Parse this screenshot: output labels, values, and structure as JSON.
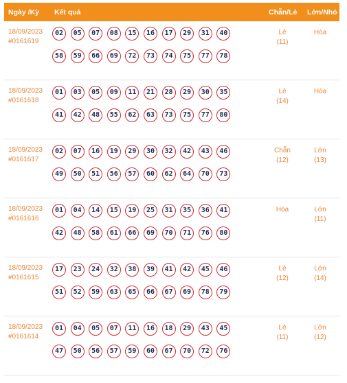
{
  "header": {
    "date": "Ngày /Kỳ",
    "result": "Kết quả",
    "chanle": "Chẵn/Lẻ",
    "lonnho": "Lớn/Nhỏ"
  },
  "draws": [
    {
      "date": "18/09/2023",
      "id": "#0161619",
      "row1": [
        "02",
        "05",
        "07",
        "08",
        "15",
        "16",
        "17",
        "29",
        "31",
        "40"
      ],
      "row2": [
        "58",
        "59",
        "66",
        "69",
        "72",
        "73",
        "74",
        "75",
        "77",
        "78"
      ],
      "chanle": "Lẻ",
      "chanle_count": "(11)",
      "lonnho": "Hòa",
      "lonnho_count": ""
    },
    {
      "date": "18/09/2023",
      "id": "#0161618",
      "row1": [
        "01",
        "03",
        "05",
        "09",
        "11",
        "21",
        "28",
        "29",
        "30",
        "35"
      ],
      "row2": [
        "41",
        "42",
        "48",
        "55",
        "62",
        "63",
        "73",
        "75",
        "77",
        "80"
      ],
      "chanle": "Lẻ",
      "chanle_count": "(14)",
      "lonnho": "Hòa",
      "lonnho_count": ""
    },
    {
      "date": "18/09/2023",
      "id": "#0161617",
      "row1": [
        "02",
        "07",
        "16",
        "19",
        "29",
        "30",
        "32",
        "42",
        "43",
        "46"
      ],
      "row2": [
        "49",
        "50",
        "51",
        "56",
        "57",
        "60",
        "62",
        "64",
        "70",
        "73"
      ],
      "chanle": "Chẵn",
      "chanle_count": "(12)",
      "lonnho": "Lớn",
      "lonnho_count": "(13)"
    },
    {
      "date": "18/09/2023",
      "id": "#0161616",
      "row1": [
        "01",
        "04",
        "14",
        "15",
        "19",
        "25",
        "31",
        "35",
        "36",
        "41"
      ],
      "row2": [
        "42",
        "48",
        "58",
        "61",
        "66",
        "69",
        "70",
        "71",
        "76",
        "80"
      ],
      "chanle": "Hòa",
      "chanle_count": "",
      "lonnho": "Lớn",
      "lonnho_count": "(11)"
    },
    {
      "date": "18/09/2023",
      "id": "#0161615",
      "row1": [
        "17",
        "23",
        "24",
        "32",
        "38",
        "39",
        "41",
        "42",
        "45",
        "46"
      ],
      "row2": [
        "51",
        "52",
        "59",
        "63",
        "65",
        "66",
        "67",
        "69",
        "78",
        "79"
      ],
      "chanle": "Lẻ",
      "chanle_count": "(12)",
      "lonnho": "Lớn",
      "lonnho_count": "(14)"
    },
    {
      "date": "18/09/2023",
      "id": "#0161614",
      "row1": [
        "01",
        "04",
        "05",
        "07",
        "11",
        "16",
        "18",
        "29",
        "43",
        "45"
      ],
      "row2": [
        "47",
        "50",
        "56",
        "57",
        "59",
        "60",
        "67",
        "70",
        "72",
        "76"
      ],
      "chanle": "Lẻ",
      "chanle_count": "(11)",
      "lonnho": "Lớn",
      "lonnho_count": "(12)"
    }
  ],
  "colors": {
    "header_bg": "#f28f1c",
    "accent_text": "#e8883a",
    "ball_border": "#d6262b",
    "ball_text": "#1f2a4f"
  }
}
